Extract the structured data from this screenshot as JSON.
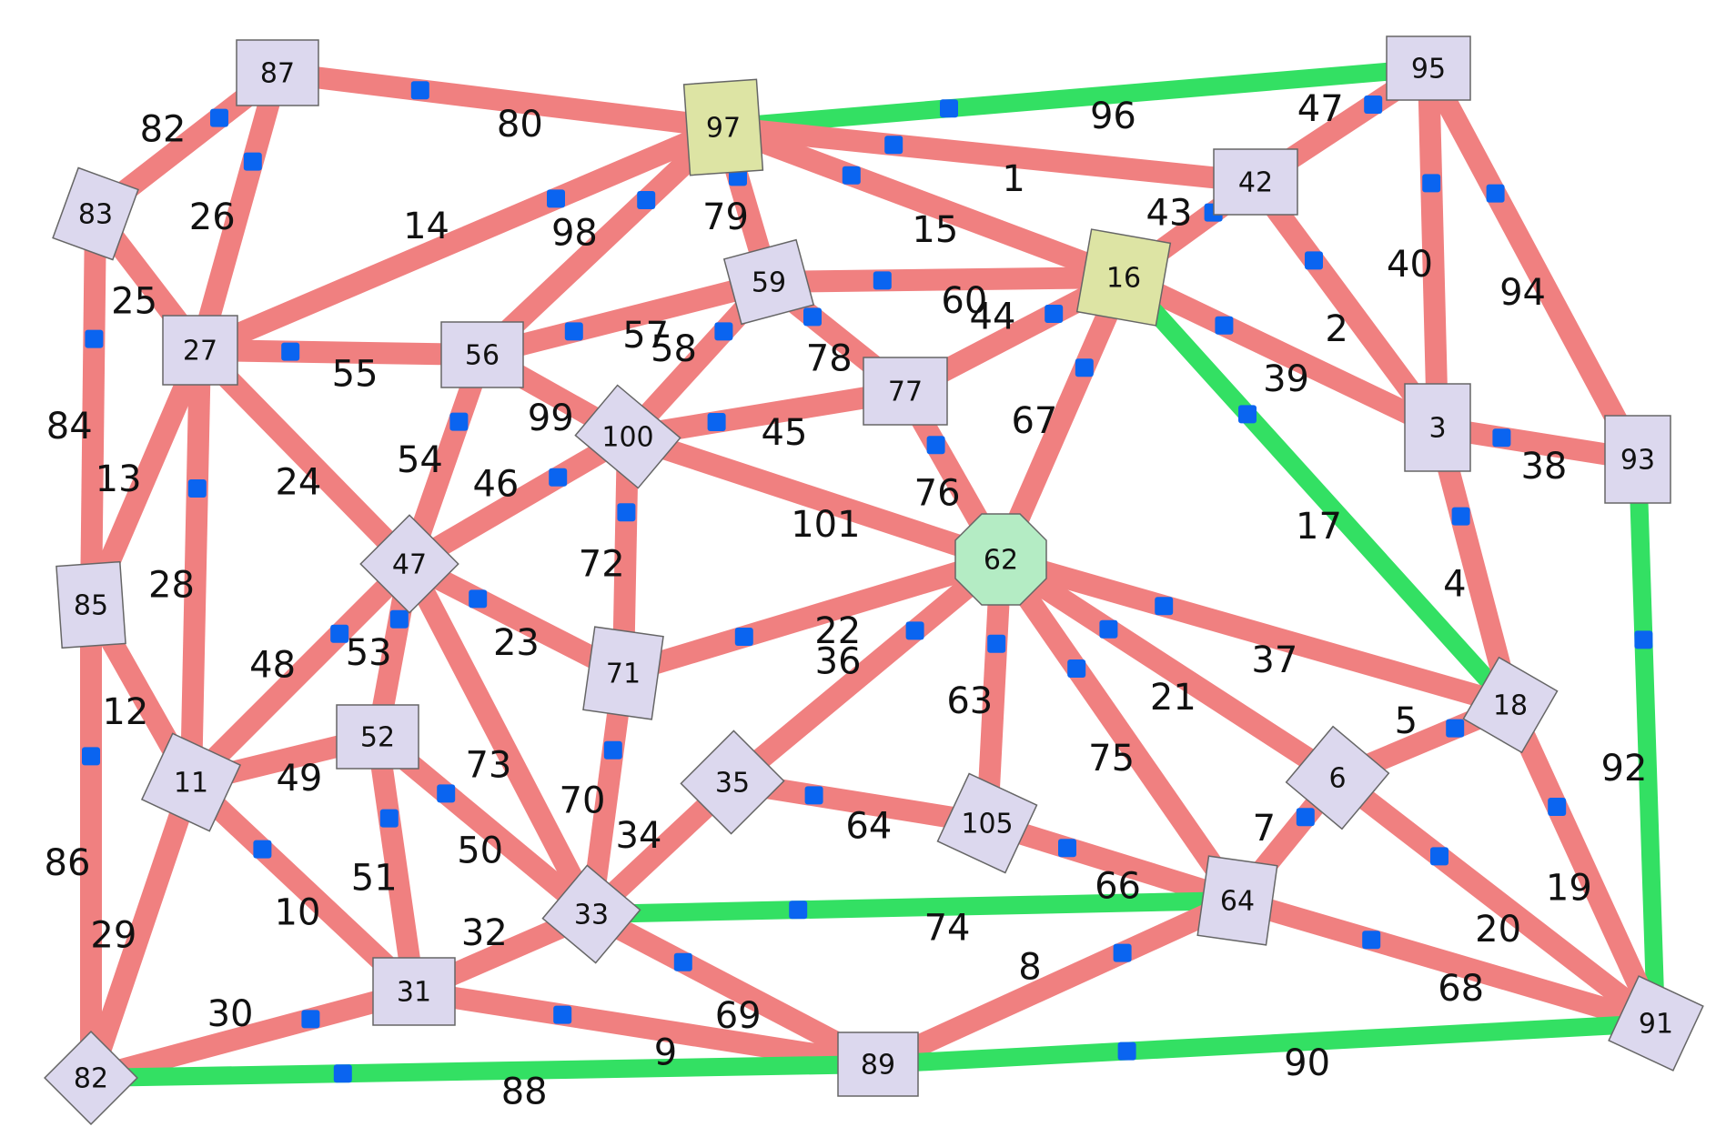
{
  "colors": {
    "edge_default": "#f08080",
    "edge_highlight": "#33e063",
    "node_default": "#dcd8ee",
    "node_yellow": "#dde4a4",
    "node_green": "#b4ecc4",
    "marker": "#0a64f0",
    "stroke_red": "#cc1111"
  },
  "nodes": [
    {
      "id": "n87",
      "label": "87",
      "color": "node_default"
    },
    {
      "id": "n97",
      "label": "97",
      "color": "node_yellow"
    },
    {
      "id": "n95",
      "label": "95",
      "color": "node_default"
    },
    {
      "id": "n83",
      "label": "83",
      "color": "node_default"
    },
    {
      "id": "n42",
      "label": "42",
      "color": "node_default"
    },
    {
      "id": "n59",
      "label": "59",
      "color": "node_default"
    },
    {
      "id": "n16",
      "label": "16",
      "color": "node_yellow"
    },
    {
      "id": "n27",
      "label": "27",
      "color": "node_default"
    },
    {
      "id": "n56",
      "label": "56",
      "color": "node_default"
    },
    {
      "id": "n100",
      "label": "100",
      "color": "node_default"
    },
    {
      "id": "n77",
      "label": "77",
      "color": "node_default"
    },
    {
      "id": "n3",
      "label": "3",
      "color": "node_default"
    },
    {
      "id": "n93",
      "label": "93",
      "color": "node_default"
    },
    {
      "id": "n47",
      "label": "47",
      "color": "node_default"
    },
    {
      "id": "n62",
      "label": "62",
      "color": "node_green"
    },
    {
      "id": "n85",
      "label": "85",
      "color": "node_default"
    },
    {
      "id": "n71",
      "label": "71",
      "color": "node_default"
    },
    {
      "id": "n18",
      "label": "18",
      "color": "node_default"
    },
    {
      "id": "n52",
      "label": "52",
      "color": "node_default"
    },
    {
      "id": "n35",
      "label": "35",
      "color": "node_default"
    },
    {
      "id": "n11",
      "label": "11",
      "color": "node_default"
    },
    {
      "id": "n105",
      "label": "105",
      "color": "node_default"
    },
    {
      "id": "n6",
      "label": "6",
      "color": "node_default"
    },
    {
      "id": "n33",
      "label": "33",
      "color": "node_default"
    },
    {
      "id": "n64",
      "label": "64",
      "color": "node_default"
    },
    {
      "id": "n31",
      "label": "31",
      "color": "node_default"
    },
    {
      "id": "n82",
      "label": "82",
      "color": "node_default"
    },
    {
      "id": "n89",
      "label": "89",
      "color": "node_default"
    },
    {
      "id": "n91",
      "label": "91",
      "color": "node_default"
    }
  ],
  "edges": [
    {
      "id": "e80",
      "from": "n87",
      "to": "n97",
      "label": "80",
      "green": false,
      "marked": true
    },
    {
      "id": "e96",
      "from": "n97",
      "to": "n95",
      "label": "96",
      "green": true,
      "marked": true
    },
    {
      "id": "e82",
      "from": "n87",
      "to": "n83",
      "label": "82",
      "green": false,
      "marked": true
    },
    {
      "id": "e26",
      "from": "n87",
      "to": "n27",
      "label": "26",
      "green": false,
      "marked": true
    },
    {
      "id": "e1",
      "from": "n97",
      "to": "n42",
      "label": "1",
      "green": false,
      "marked": true
    },
    {
      "id": "e47",
      "from": "n95",
      "to": "n42",
      "label": "47",
      "green": false,
      "marked": true
    },
    {
      "id": "e40",
      "from": "n95",
      "to": "n3",
      "label": "40",
      "green": false,
      "marked": true
    },
    {
      "id": "e94",
      "from": "n95",
      "to": "n93",
      "label": "94",
      "green": false,
      "marked": true
    },
    {
      "id": "e14",
      "from": "n97",
      "to": "n27",
      "label": "14",
      "green": false,
      "marked": true
    },
    {
      "id": "e98",
      "from": "n97",
      "to": "n56",
      "label": "98",
      "green": false,
      "marked": true
    },
    {
      "id": "e79",
      "from": "n97",
      "to": "n59",
      "label": "79",
      "green": false,
      "marked": true
    },
    {
      "id": "e15",
      "from": "n97",
      "to": "n16",
      "label": "15",
      "green": false,
      "marked": true
    },
    {
      "id": "e43",
      "from": "n42",
      "to": "n16",
      "label": "43",
      "green": false,
      "marked": true
    },
    {
      "id": "e2",
      "from": "n42",
      "to": "n3",
      "label": "2",
      "green": false,
      "marked": true
    },
    {
      "id": "e25",
      "from": "n83",
      "to": "n27",
      "label": "25",
      "green": false,
      "marked": false
    },
    {
      "id": "e84",
      "from": "n83",
      "to": "n85",
      "label": "84",
      "green": false,
      "marked": true
    },
    {
      "id": "e55",
      "from": "n27",
      "to": "n56",
      "label": "55",
      "green": false,
      "marked": true
    },
    {
      "id": "e57",
      "from": "n56",
      "to": "n59",
      "label": "57",
      "green": false,
      "marked": true
    },
    {
      "id": "e60",
      "from": "n59",
      "to": "n16",
      "label": "60",
      "green": false,
      "marked": true
    },
    {
      "id": "e58",
      "from": "n59",
      "to": "n100",
      "label": "58",
      "green": false,
      "marked": true
    },
    {
      "id": "e78",
      "from": "n59",
      "to": "n77",
      "label": "78",
      "green": false,
      "marked": true
    },
    {
      "id": "e44",
      "from": "n16",
      "to": "n77",
      "label": "44",
      "green": false,
      "marked": true
    },
    {
      "id": "e39",
      "from": "n16",
      "to": "n3",
      "label": "39",
      "green": false,
      "marked": true
    },
    {
      "id": "e17",
      "from": "n16",
      "to": "n18",
      "label": "17",
      "green": true,
      "marked": true
    },
    {
      "id": "e67",
      "from": "n16",
      "to": "n62",
      "label": "67",
      "green": false,
      "marked": true
    },
    {
      "id": "e99",
      "from": "n56",
      "to": "n100",
      "label": "99",
      "green": false,
      "marked": false
    },
    {
      "id": "e45",
      "from": "n100",
      "to": "n77",
      "label": "45",
      "green": false,
      "marked": true
    },
    {
      "id": "e38",
      "from": "n3",
      "to": "n93",
      "label": "38",
      "green": false,
      "marked": true
    },
    {
      "id": "e4",
      "from": "n3",
      "to": "n18",
      "label": "4",
      "green": false,
      "marked": true
    },
    {
      "id": "e92",
      "from": "n93",
      "to": "n91",
      "label": "92",
      "green": true,
      "marked": true
    },
    {
      "id": "e13",
      "from": "n27",
      "to": "n85",
      "label": "13",
      "green": false,
      "marked": false
    },
    {
      "id": "e28",
      "from": "n27",
      "to": "n11",
      "label": "28",
      "green": false,
      "marked": true
    },
    {
      "id": "e24",
      "from": "n27",
      "to": "n47",
      "label": "24",
      "green": false,
      "marked": false
    },
    {
      "id": "e54",
      "from": "n56",
      "to": "n47",
      "label": "54",
      "green": false,
      "marked": true
    },
    {
      "id": "e46",
      "from": "n100",
      "to": "n47",
      "label": "46",
      "green": false,
      "marked": true
    },
    {
      "id": "e72",
      "from": "n100",
      "to": "n71",
      "label": "72",
      "green": false,
      "marked": true
    },
    {
      "id": "e101",
      "from": "n100",
      "to": "n62",
      "label": "101",
      "green": false,
      "marked": false
    },
    {
      "id": "e76",
      "from": "n77",
      "to": "n62",
      "label": "76",
      "green": false,
      "marked": true
    },
    {
      "id": "e23",
      "from": "n47",
      "to": "n71",
      "label": "23",
      "green": false,
      "marked": true
    },
    {
      "id": "e22",
      "from": "n71",
      "to": "n62",
      "label": "22",
      "green": false,
      "marked": true
    },
    {
      "id": "e37",
      "from": "n62",
      "to": "n18",
      "label": "37",
      "green": false,
      "marked": true
    },
    {
      "id": "e21",
      "from": "n62",
      "to": "n6",
      "label": "21",
      "green": false,
      "marked": true
    },
    {
      "id": "e75",
      "from": "n62",
      "to": "n64",
      "label": "75",
      "green": false,
      "marked": true
    },
    {
      "id": "e63",
      "from": "n62",
      "to": "n105",
      "label": "63",
      "green": false,
      "marked": true
    },
    {
      "id": "e36",
      "from": "n62",
      "to": "n35",
      "label": "36",
      "green": false,
      "marked": true
    },
    {
      "id": "e12",
      "from": "n85",
      "to": "n11",
      "label": "12",
      "green": false,
      "marked": false
    },
    {
      "id": "e86",
      "from": "n85",
      "to": "n82",
      "label": "86",
      "green": false,
      "marked": true
    },
    {
      "id": "e48",
      "from": "n47",
      "to": "n11",
      "label": "48",
      "green": false,
      "marked": true
    },
    {
      "id": "e53",
      "from": "n47",
      "to": "n52",
      "label": "53",
      "green": false,
      "marked": true
    },
    {
      "id": "e73",
      "from": "n47",
      "to": "n33",
      "label": "73",
      "green": false,
      "marked": false
    },
    {
      "id": "e70",
      "from": "n71",
      "to": "n33",
      "label": "70",
      "green": false,
      "marked": true
    },
    {
      "id": "e5",
      "from": "n18",
      "to": "n6",
      "label": "5",
      "green": false,
      "marked": true
    },
    {
      "id": "e19",
      "from": "n18",
      "to": "n91",
      "label": "19",
      "green": false,
      "marked": true
    },
    {
      "id": "e49",
      "from": "n11",
      "to": "n52",
      "label": "49",
      "green": false,
      "marked": false
    },
    {
      "id": "e29",
      "from": "n11",
      "to": "n82",
      "label": "29",
      "green": false,
      "marked": false
    },
    {
      "id": "e10",
      "from": "n11",
      "to": "n31",
      "label": "10",
      "green": false,
      "marked": true
    },
    {
      "id": "e51",
      "from": "n52",
      "to": "n31",
      "label": "51",
      "green": false,
      "marked": true
    },
    {
      "id": "e50",
      "from": "n52",
      "to": "n33",
      "label": "50",
      "green": false,
      "marked": true
    },
    {
      "id": "e34",
      "from": "n35",
      "to": "n33",
      "label": "34",
      "green": false,
      "marked": false
    },
    {
      "id": "e64",
      "from": "n35",
      "to": "n105",
      "label": "64",
      "green": false,
      "marked": true
    },
    {
      "id": "e66",
      "from": "n105",
      "to": "n64",
      "label": "66",
      "green": false,
      "marked": true
    },
    {
      "id": "e7",
      "from": "n6",
      "to": "n64",
      "label": "7",
      "green": false,
      "marked": true
    },
    {
      "id": "e20",
      "from": "n6",
      "to": "n91",
      "label": "20",
      "green": false,
      "marked": true
    },
    {
      "id": "e68",
      "from": "n64",
      "to": "n91",
      "label": "68",
      "green": false,
      "marked": true
    },
    {
      "id": "e74",
      "from": "n33",
      "to": "n64",
      "label": "74",
      "green": true,
      "marked": true
    },
    {
      "id": "e32",
      "from": "n33",
      "to": "n31",
      "label": "32",
      "green": false,
      "marked": false
    },
    {
      "id": "e69",
      "from": "n33",
      "to": "n89",
      "label": "69",
      "green": false,
      "marked": true
    },
    {
      "id": "e8",
      "from": "n64",
      "to": "n89",
      "label": "8",
      "green": false,
      "marked": true
    },
    {
      "id": "e30",
      "from": "n31",
      "to": "n82",
      "label": "30",
      "green": false,
      "marked": true
    },
    {
      "id": "e9",
      "from": "n31",
      "to": "n89",
      "label": "9",
      "green": false,
      "marked": true
    },
    {
      "id": "e88",
      "from": "n82",
      "to": "n89",
      "label": "88",
      "green": true,
      "marked": true
    },
    {
      "id": "e90",
      "from": "n89",
      "to": "n91",
      "label": "90",
      "green": true,
      "marked": true
    }
  ]
}
